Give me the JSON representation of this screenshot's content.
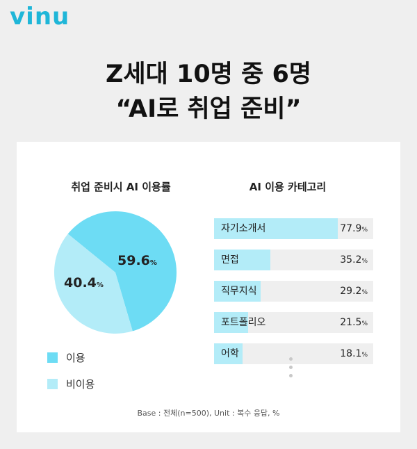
{
  "brand": "vinu",
  "headline": {
    "line1": "Z세대 10명 중 6명",
    "line2": "“AI로 취업 준비”"
  },
  "colors": {
    "use": "#6ddcf4",
    "nonuse": "#b3ecf8",
    "bar": "#b3ecf8",
    "bar_track": "#efefef",
    "brand": "#1fb6d8"
  },
  "chart_data": [
    {
      "type": "pie",
      "title": "취업 준비시 AI 이용률",
      "slices": [
        {
          "name": "이용",
          "value": 59.6,
          "label": "59.6",
          "color": "#6ddcf4"
        },
        {
          "name": "비이용",
          "value": 40.4,
          "label": "40.4",
          "color": "#b3ecf8"
        }
      ],
      "unit": "%",
      "legend": "bottom-left"
    },
    {
      "type": "bar",
      "orientation": "horizontal",
      "title": "AI 이용 카테고리",
      "categories": [
        "자기소개서",
        "면접",
        "직무지식",
        "포트폴리오",
        "어학"
      ],
      "values": [
        77.9,
        35.2,
        29.2,
        21.5,
        18.1
      ],
      "unit": "%",
      "xlim": [
        0,
        100
      ]
    }
  ],
  "footnote": "Base : 전체(n=500), Unit : 복수 응답, %"
}
